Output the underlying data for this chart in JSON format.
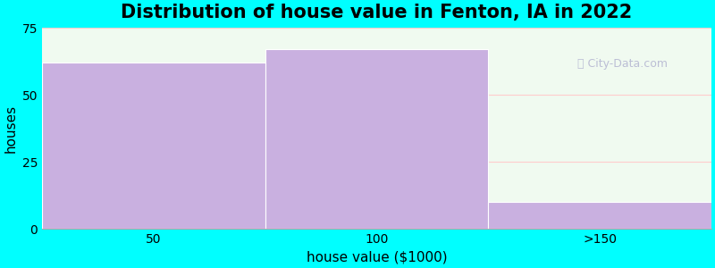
{
  "title": "Distribution of house value in Fenton, IA in 2022",
  "xlabel": "house value ($1000)",
  "ylabel": "houses",
  "categories": [
    "50",
    "100",
    ">150"
  ],
  "values": [
    62,
    67,
    10
  ],
  "bar_color": "#c9b0e0",
  "bar_edgecolor": "#c9b0e0",
  "ylim": [
    0,
    75
  ],
  "yticks": [
    0,
    25,
    50,
    75
  ],
  "background_color": "#00ffff",
  "plot_bg_color_left": "#f5fff5",
  "plot_bg_color_right": "#e8f8e8",
  "grid_color": "#ffaaaa",
  "title_fontsize": 15,
  "label_fontsize": 11,
  "tick_fontsize": 10,
  "watermark": "City-Data.com"
}
